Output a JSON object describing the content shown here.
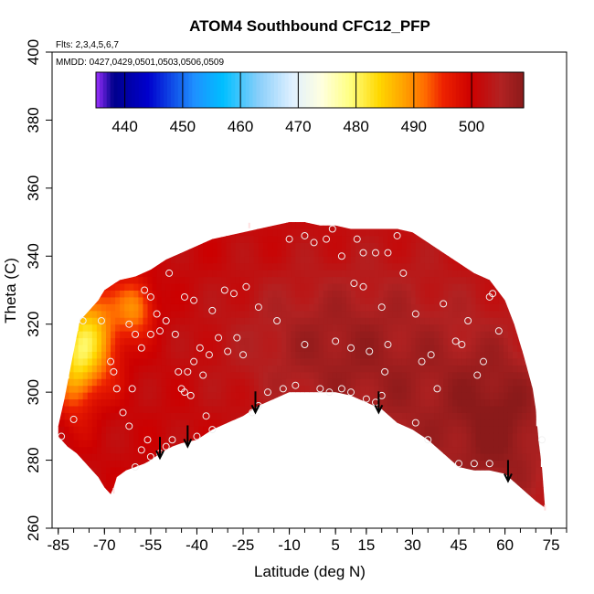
{
  "chart_data": {
    "type": "heatmap",
    "title": "ATOM4 Southbound CFC12_PFP",
    "notes": [
      "Flts: 2,3,4,5,6,7",
      "MMDD: 0427,0429,0501,0503,0506,0509"
    ],
    "xlabel": "Latitude (deg N)",
    "ylabel": "Theta (C)",
    "xlim": [
      -87,
      80
    ],
    "ylim": [
      260,
      400
    ],
    "x_ticks": [
      -85,
      -70,
      -55,
      -40,
      -25,
      -10,
      5,
      15,
      30,
      45,
      60,
      75
    ],
    "x_minor_ticks": [
      -85,
      -80,
      -75,
      -70,
      -65,
      -60,
      -55,
      -50,
      -45,
      -40,
      -35,
      -30,
      -25,
      -20,
      -15,
      -10,
      -5,
      0,
      5,
      10,
      15,
      20,
      25,
      30,
      35,
      40,
      45,
      50,
      55,
      60,
      65,
      70,
      75,
      80
    ],
    "y_ticks": [
      260,
      280,
      300,
      320,
      340,
      360,
      380,
      400
    ],
    "colorbar": {
      "range": [
        435,
        509
      ],
      "ticks": [
        440,
        450,
        460,
        470,
        480,
        490,
        500
      ],
      "colors": [
        "#9b30ff",
        "#00008b",
        "#0000cd",
        "#1e90ff",
        "#00bfff",
        "#87cefa",
        "#e0f0ff",
        "#ffffe0",
        "#ffff80",
        "#ffd700",
        "#ffa500",
        "#ff6a00",
        "#ee2200",
        "#cc0000",
        "#b22222",
        "#8b1a1a"
      ],
      "color_stops": [
        435,
        438,
        444,
        452,
        457,
        463,
        469,
        474,
        479,
        484,
        488,
        492,
        495,
        500,
        505,
        509
      ]
    },
    "field": {
      "base_value": 501,
      "dark_zones": [
        {
          "lat": -5,
          "theta": 315,
          "rlat": 30,
          "rtheta": 22,
          "value": 505
        },
        {
          "lat": 30,
          "theta": 300,
          "rlat": 35,
          "rtheta": 40,
          "value": 506
        },
        {
          "lat": 60,
          "theta": 290,
          "rlat": 18,
          "rtheta": 25,
          "value": 507
        }
      ],
      "warm_zones": [
        {
          "lat": -75,
          "theta": 316,
          "rlat": 9,
          "rtheta": 14,
          "value": 484
        },
        {
          "lat": -80,
          "theta": 305,
          "rlat": 6,
          "rtheta": 12,
          "value": 492
        },
        {
          "lat": -60,
          "theta": 325,
          "rlat": 6,
          "rtheta": 8,
          "value": 490
        }
      ]
    },
    "top_boundary": [
      [
        -85,
        290
      ],
      [
        -83,
        298
      ],
      [
        -80,
        312
      ],
      [
        -78,
        321
      ],
      [
        -75,
        324
      ],
      [
        -72,
        327
      ],
      [
        -70,
        330
      ],
      [
        -65,
        333
      ],
      [
        -60,
        334
      ],
      [
        -55,
        336
      ],
      [
        -50,
        339
      ],
      [
        -45,
        341
      ],
      [
        -40,
        343
      ],
      [
        -35,
        345
      ],
      [
        -30,
        346
      ],
      [
        -25,
        347
      ],
      [
        -20,
        348
      ],
      [
        -15,
        349
      ],
      [
        -10,
        350
      ],
      [
        -5,
        350
      ],
      [
        0,
        349
      ],
      [
        5,
        349
      ],
      [
        10,
        348
      ],
      [
        15,
        348
      ],
      [
        20,
        348
      ],
      [
        25,
        348
      ],
      [
        30,
        347
      ],
      [
        35,
        344
      ],
      [
        40,
        341
      ],
      [
        45,
        338
      ],
      [
        50,
        335
      ],
      [
        55,
        333
      ],
      [
        60,
        327
      ],
      [
        63,
        320
      ],
      [
        66,
        311
      ],
      [
        69,
        301
      ],
      [
        70,
        295
      ],
      [
        71,
        285
      ],
      [
        72,
        278
      ],
      [
        73,
        266
      ]
    ],
    "bottom_boundary": [
      [
        -85,
        287
      ],
      [
        -82,
        284
      ],
      [
        -79,
        282
      ],
      [
        -76,
        279
      ],
      [
        -74,
        277
      ],
      [
        -72,
        275
      ],
      [
        -70,
        272
      ],
      [
        -68,
        270
      ],
      [
        -67,
        272
      ],
      [
        -66,
        275
      ],
      [
        -63,
        277
      ],
      [
        -60,
        278
      ],
      [
        -57,
        279
      ],
      [
        -55,
        280
      ],
      [
        -52,
        282
      ],
      [
        -48,
        284
      ],
      [
        -45,
        285
      ],
      [
        -40,
        286
      ],
      [
        -35,
        289
      ],
      [
        -30,
        291
      ],
      [
        -25,
        293
      ],
      [
        -20,
        296
      ],
      [
        -15,
        298
      ],
      [
        -10,
        300
      ],
      [
        -5,
        300
      ],
      [
        0,
        300
      ],
      [
        5,
        300
      ],
      [
        10,
        299
      ],
      [
        15,
        297
      ],
      [
        20,
        295
      ],
      [
        25,
        291
      ],
      [
        30,
        289
      ],
      [
        35,
        286
      ],
      [
        40,
        282
      ],
      [
        45,
        278
      ],
      [
        50,
        277
      ],
      [
        55,
        277
      ],
      [
        60,
        276
      ],
      [
        65,
        272
      ],
      [
        70,
        268
      ],
      [
        73,
        266
      ]
    ],
    "samples": [
      [
        -84,
        287
      ],
      [
        -80,
        292
      ],
      [
        -77,
        321
      ],
      [
        -71,
        321
      ],
      [
        -68,
        309
      ],
      [
        -67,
        306
      ],
      [
        -66,
        301
      ],
      [
        -64,
        294
      ],
      [
        -62,
        290
      ],
      [
        -61,
        301
      ],
      [
        -60,
        278
      ],
      [
        -58,
        283
      ],
      [
        -56,
        286
      ],
      [
        -55,
        281
      ],
      [
        -52,
        282
      ],
      [
        -50,
        284
      ],
      [
        -48,
        286
      ],
      [
        -44,
        300
      ],
      [
        -42,
        299
      ],
      [
        -40,
        287
      ],
      [
        -37,
        293
      ],
      [
        -35,
        289
      ],
      [
        -45,
        301
      ],
      [
        -46,
        306
      ],
      [
        -43,
        306
      ],
      [
        -41,
        309
      ],
      [
        -38,
        305
      ],
      [
        -39,
        313
      ],
      [
        -36,
        311
      ],
      [
        -33,
        316
      ],
      [
        -30,
        312
      ],
      [
        -27,
        316
      ],
      [
        -25,
        311
      ],
      [
        -22,
        294
      ],
      [
        -20,
        296
      ],
      [
        -17,
        300
      ],
      [
        -14,
        321
      ],
      [
        -12,
        301
      ],
      [
        -8,
        302
      ],
      [
        0,
        301
      ],
      [
        3,
        300
      ],
      [
        7,
        301
      ],
      [
        10,
        300
      ],
      [
        15,
        298
      ],
      [
        18,
        297
      ],
      [
        20,
        299
      ],
      [
        21,
        306
      ],
      [
        -57,
        330
      ],
      [
        -55,
        328
      ],
      [
        -53,
        323
      ],
      [
        -49,
        335
      ],
      [
        -44,
        328
      ],
      [
        -41,
        327
      ],
      [
        -35,
        324
      ],
      [
        -31,
        330
      ],
      [
        -28,
        329
      ],
      [
        -24,
        331
      ],
      [
        -20,
        325
      ],
      [
        -62,
        320
      ],
      [
        -60,
        317
      ],
      [
        -58,
        313
      ],
      [
        -55,
        317
      ],
      [
        -52,
        318
      ],
      [
        -50,
        321
      ],
      [
        -47,
        317
      ],
      [
        -10,
        345
      ],
      [
        -5,
        346
      ],
      [
        -2,
        344
      ],
      [
        2,
        345
      ],
      [
        4,
        348
      ],
      [
        7,
        340
      ],
      [
        12,
        345
      ],
      [
        14,
        341
      ],
      [
        18,
        341
      ],
      [
        22,
        341
      ],
      [
        25,
        346
      ],
      [
        11,
        332
      ],
      [
        14,
        331
      ],
      [
        20,
        325
      ],
      [
        27,
        335
      ],
      [
        31,
        323
      ],
      [
        33,
        309
      ],
      [
        36,
        311
      ],
      [
        38,
        301
      ],
      [
        40,
        326
      ],
      [
        44,
        315
      ],
      [
        46,
        314
      ],
      [
        48,
        321
      ],
      [
        51,
        305
      ],
      [
        53,
        309
      ],
      [
        55,
        328
      ],
      [
        56,
        329
      ],
      [
        58,
        318
      ],
      [
        -5,
        314
      ],
      [
        5,
        315
      ],
      [
        10,
        313
      ],
      [
        16,
        312
      ],
      [
        22,
        314
      ],
      [
        31,
        291
      ],
      [
        35,
        286
      ],
      [
        45,
        279
      ],
      [
        50,
        279
      ],
      [
        55,
        279
      ],
      [
        72,
        286
      ]
    ],
    "arrows": [
      -52,
      -43,
      -21,
      19,
      61
    ],
    "edge_marks": [
      [
        -67,
        271
      ],
      [
        -23,
        349
      ],
      [
        73,
        266
      ]
    ]
  }
}
